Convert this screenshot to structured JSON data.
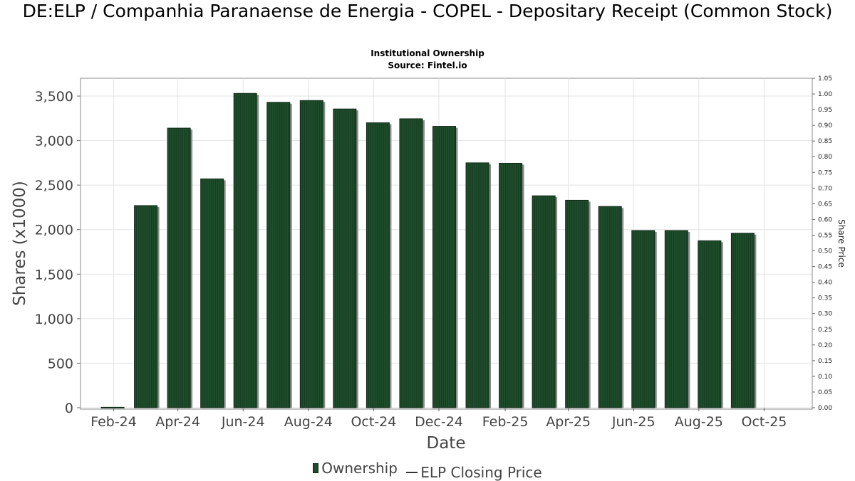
{
  "chart_data": {
    "type": "bar",
    "title": "DE:ELP / Companhia Paranaense de Energia - COPEL - Depositary Receipt (Common Stock)",
    "subtitle": "Institutional Ownership",
    "source": "Source: Fintel.io",
    "xlabel": "Date",
    "ylabel": "Shares (x1000)",
    "y2label": "Share Price",
    "ylim": [
      0,
      3700
    ],
    "y2lim": [
      0,
      1.05
    ],
    "grid": true,
    "legend_position": "bottom-center",
    "x_tick_labels": [
      "Feb-24",
      "Apr-24",
      "Jun-24",
      "Aug-24",
      "Oct-24",
      "Dec-24",
      "Feb-25",
      "Apr-25",
      "Jun-25",
      "Aug-25",
      "Oct-25"
    ],
    "y_tick_labels": [
      "0",
      "500",
      "1,000",
      "1,500",
      "2,000",
      "2,500",
      "3,000",
      "3,500"
    ],
    "y2_tick_labels": [
      "0.00",
      "0.05",
      "0.10",
      "0.15",
      "0.20",
      "0.25",
      "0.30",
      "0.35",
      "0.40",
      "0.45",
      "0.50",
      "0.55",
      "0.60",
      "0.65",
      "0.70",
      "0.75",
      "0.80",
      "0.85",
      "0.90",
      "0.95",
      "1.00",
      "1.05"
    ],
    "series": [
      {
        "name": "Ownership",
        "color": "#1e4d2b",
        "x": [
          "2024-01-31",
          "2024-03-02",
          "2024-04-02",
          "2024-05-03",
          "2024-06-03",
          "2024-07-04",
          "2024-08-04",
          "2024-09-04",
          "2024-10-05",
          "2024-11-05",
          "2024-12-06",
          "2025-01-06",
          "2025-02-06",
          "2025-03-09",
          "2025-04-09",
          "2025-05-10",
          "2025-06-10",
          "2025-07-11",
          "2025-08-11",
          "2025-09-11"
        ],
        "values": [
          5,
          2270,
          3140,
          2570,
          3530,
          3430,
          3450,
          3355,
          3200,
          3245,
          3160,
          2750,
          2745,
          2380,
          2330,
          2260,
          1990,
          1990,
          1875,
          1960
        ]
      },
      {
        "name": "ELP Closing Price",
        "color": "#333333",
        "x": [],
        "values": []
      }
    ]
  },
  "legend": {
    "ownership": "Ownership",
    "price": "ELP Closing Price"
  }
}
